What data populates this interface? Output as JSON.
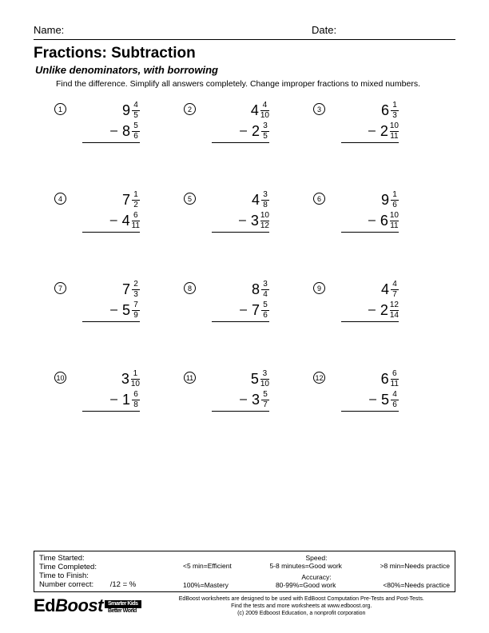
{
  "header": {
    "name_label": "Name:",
    "date_label": "Date:"
  },
  "title": "Fractions: Subtraction",
  "subtitle": "Unlike denominators, with borrowing",
  "instructions": "Find the difference.  Simplify all answers completely.  Change improper fractions to mixed numbers.",
  "problems": [
    {
      "n": "1",
      "top_w": "9",
      "top_n": "4",
      "top_d": "5",
      "bot_w": "8",
      "bot_n": "5",
      "bot_d": "6"
    },
    {
      "n": "2",
      "top_w": "4",
      "top_n": "4",
      "top_d": "10",
      "bot_w": "2",
      "bot_n": "3",
      "bot_d": "5"
    },
    {
      "n": "3",
      "top_w": "6",
      "top_n": "1",
      "top_d": "3",
      "bot_w": "2",
      "bot_n": "10",
      "bot_d": "11"
    },
    {
      "n": "4",
      "top_w": "7",
      "top_n": "1",
      "top_d": "2",
      "bot_w": "4",
      "bot_n": "6",
      "bot_d": "11"
    },
    {
      "n": "5",
      "top_w": "4",
      "top_n": "3",
      "top_d": "8",
      "bot_w": "3",
      "bot_n": "10",
      "bot_d": "12"
    },
    {
      "n": "6",
      "top_w": "9",
      "top_n": "1",
      "top_d": "6",
      "bot_w": "6",
      "bot_n": "10",
      "bot_d": "11"
    },
    {
      "n": "7",
      "top_w": "7",
      "top_n": "2",
      "top_d": "3",
      "bot_w": "5",
      "bot_n": "7",
      "bot_d": "9"
    },
    {
      "n": "8",
      "top_w": "8",
      "top_n": "3",
      "top_d": "4",
      "bot_w": "7",
      "bot_n": "5",
      "bot_d": "6"
    },
    {
      "n": "9",
      "top_w": "4",
      "top_n": "4",
      "top_d": "7",
      "bot_w": "2",
      "bot_n": "12",
      "bot_d": "14"
    },
    {
      "n": "10",
      "top_w": "3",
      "top_n": "1",
      "top_d": "10",
      "bot_w": "1",
      "bot_n": "6",
      "bot_d": "8"
    },
    {
      "n": "11",
      "top_w": "5",
      "top_n": "3",
      "top_d": "10",
      "bot_w": "3",
      "bot_n": "5",
      "bot_d": "7"
    },
    {
      "n": "12",
      "top_w": "6",
      "top_n": "6",
      "top_d": "11",
      "bot_w": "5",
      "bot_n": "4",
      "bot_d": "6"
    }
  ],
  "footbox": {
    "time_started": "Time Started:",
    "time_completed": "Time Completed:",
    "time_finish": "Time to Finish:",
    "num_correct": "Number correct:",
    "num_correct_tail": "/12 =       %",
    "speed_label": "Speed:",
    "speed1": "<5 min=Efficient",
    "speed2": "5-8 minutes=Good work",
    "speed3": ">8 min=Needs practice",
    "acc_label": "Accuracy:",
    "acc1": "100%=Mastery",
    "acc2": "80-99%=Good work",
    "acc3": "<80%=Needs practice"
  },
  "logo": {
    "ed": "Ed",
    "boost": "Boost",
    "tag_top": "Smarter Kids",
    "tag_bot": "Better World"
  },
  "footnote": {
    "l1": "EdBoost worksheets are designed to be used with EdBoost Computation Pre-Tests and Post-Tests.",
    "l2": "Find the tests and more worksheets at www.edboost.org.",
    "l3": "(c) 2009 Edboost Education, a nonprofit corporation"
  }
}
